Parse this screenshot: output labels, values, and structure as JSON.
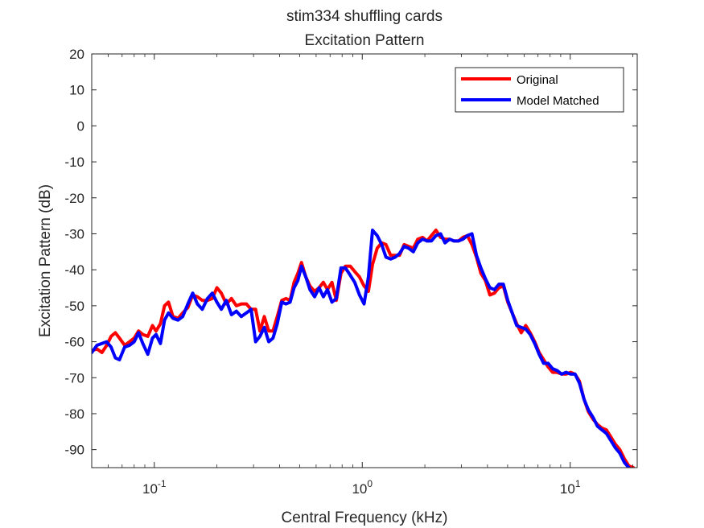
{
  "chart_data": {
    "type": "line",
    "title": "stim334 shuffling cards",
    "subtitle": "Excitation Pattern",
    "xlabel": "Central Frequency (kHz)",
    "ylabel": "Excitation Pattern (dB)",
    "xscale": "log",
    "xlim": [
      0.05,
      21
    ],
    "ylim": [
      -95,
      20
    ],
    "x_ticks": [
      {
        "value": 0.1,
        "base": "10",
        "exp": "-1"
      },
      {
        "value": 1,
        "base": "10",
        "exp": "0"
      },
      {
        "value": 10,
        "base": "10",
        "exp": "1"
      }
    ],
    "y_ticks": [
      20,
      10,
      0,
      -10,
      -20,
      -30,
      -40,
      -50,
      -60,
      -70,
      -80,
      -90
    ],
    "y_tick_labels": [
      "20",
      "10",
      "0",
      "-10",
      "-20",
      "-30",
      "-40",
      "-50",
      "-60",
      "-70",
      "-80",
      "-90"
    ],
    "grid": false,
    "legend_position": "top-right",
    "series": [
      {
        "name": "Original",
        "color": "#ff0000",
        "points": [
          [
            0.05,
            -62.5
          ],
          [
            0.053,
            -62
          ],
          [
            0.056,
            -63
          ],
          [
            0.059,
            -61
          ],
          [
            0.062,
            -58.5
          ],
          [
            0.065,
            -57.5
          ],
          [
            0.068,
            -59
          ],
          [
            0.072,
            -61
          ],
          [
            0.076,
            -60
          ],
          [
            0.08,
            -59
          ],
          [
            0.084,
            -57
          ],
          [
            0.088,
            -58
          ],
          [
            0.093,
            -58.5
          ],
          [
            0.098,
            -55.5
          ],
          [
            0.102,
            -57
          ],
          [
            0.107,
            -55
          ],
          [
            0.112,
            -50
          ],
          [
            0.117,
            -49
          ],
          [
            0.123,
            -53
          ],
          [
            0.13,
            -53.5
          ],
          [
            0.137,
            -52
          ],
          [
            0.145,
            -50.5
          ],
          [
            0.153,
            -47
          ],
          [
            0.161,
            -47.5
          ],
          [
            0.17,
            -48.5
          ],
          [
            0.18,
            -48.5
          ],
          [
            0.19,
            -48
          ],
          [
            0.2,
            -45
          ],
          [
            0.21,
            -46.5
          ],
          [
            0.222,
            -49.5
          ],
          [
            0.235,
            -48
          ],
          [
            0.248,
            -50
          ],
          [
            0.262,
            -49.5
          ],
          [
            0.277,
            -49.5
          ],
          [
            0.292,
            -51
          ],
          [
            0.307,
            -51
          ],
          [
            0.322,
            -57
          ],
          [
            0.338,
            -53
          ],
          [
            0.355,
            -57
          ],
          [
            0.372,
            -57
          ],
          [
            0.39,
            -53
          ],
          [
            0.41,
            -48.5
          ],
          [
            0.43,
            -48
          ],
          [
            0.45,
            -48.5
          ],
          [
            0.47,
            -43.5
          ],
          [
            0.49,
            -41
          ],
          [
            0.51,
            -38
          ],
          [
            0.535,
            -42
          ],
          [
            0.56,
            -44.5
          ],
          [
            0.59,
            -46
          ],
          [
            0.62,
            -45
          ],
          [
            0.65,
            -43.5
          ],
          [
            0.68,
            -45.5
          ],
          [
            0.715,
            -43.5
          ],
          [
            0.75,
            -48.5
          ],
          [
            0.79,
            -41
          ],
          [
            0.83,
            -39
          ],
          [
            0.875,
            -39
          ],
          [
            0.92,
            -40.5
          ],
          [
            0.97,
            -42
          ],
          [
            1.02,
            -44.5
          ],
          [
            1.07,
            -46
          ],
          [
            1.12,
            -38.5
          ],
          [
            1.18,
            -34
          ],
          [
            1.24,
            -32.5
          ],
          [
            1.3,
            -33
          ],
          [
            1.37,
            -36
          ],
          [
            1.44,
            -36
          ],
          [
            1.51,
            -36
          ],
          [
            1.59,
            -33
          ],
          [
            1.67,
            -33.5
          ],
          [
            1.76,
            -34
          ],
          [
            1.85,
            -31.5
          ],
          [
            1.95,
            -31
          ],
          [
            2.05,
            -32
          ],
          [
            2.15,
            -30.5
          ],
          [
            2.26,
            -29
          ],
          [
            2.38,
            -31
          ],
          [
            2.5,
            -31.5
          ],
          [
            2.63,
            -31.5
          ],
          [
            2.76,
            -32
          ],
          [
            2.9,
            -32
          ],
          [
            3.05,
            -31
          ],
          [
            3.2,
            -30.5
          ],
          [
            3.37,
            -33
          ],
          [
            3.54,
            -36.5
          ],
          [
            3.72,
            -41
          ],
          [
            3.91,
            -43
          ],
          [
            4.11,
            -47
          ],
          [
            4.32,
            -46.5
          ],
          [
            4.54,
            -45
          ],
          [
            4.77,
            -44.5
          ],
          [
            5.01,
            -49
          ],
          [
            5.26,
            -52
          ],
          [
            5.53,
            -55
          ],
          [
            5.81,
            -57.5
          ],
          [
            6.11,
            -55.5
          ],
          [
            6.42,
            -57.5
          ],
          [
            6.75,
            -60
          ],
          [
            7.09,
            -63
          ],
          [
            7.45,
            -65
          ],
          [
            7.83,
            -67
          ],
          [
            8.23,
            -68.5
          ],
          [
            8.65,
            -68.5
          ],
          [
            9.09,
            -69
          ],
          [
            9.55,
            -69
          ],
          [
            10.04,
            -68.5
          ],
          [
            10.55,
            -69
          ],
          [
            11.08,
            -71
          ],
          [
            11.65,
            -76
          ],
          [
            12.24,
            -79.5
          ],
          [
            12.86,
            -81.5
          ],
          [
            13.52,
            -83
          ],
          [
            14.2,
            -84
          ],
          [
            14.93,
            -84.5
          ],
          [
            15.69,
            -86.5
          ],
          [
            16.48,
            -88.5
          ],
          [
            17.32,
            -90
          ],
          [
            18.2,
            -92.5
          ],
          [
            19.13,
            -94.5
          ],
          [
            20.1,
            -95
          ]
        ]
      },
      {
        "name": "Model Matched",
        "color": "#0000ff",
        "points": [
          [
            0.05,
            -63
          ],
          [
            0.053,
            -61
          ],
          [
            0.056,
            -60.5
          ],
          [
            0.059,
            -60
          ],
          [
            0.062,
            -61.5
          ],
          [
            0.065,
            -64.5
          ],
          [
            0.068,
            -65
          ],
          [
            0.072,
            -61.5
          ],
          [
            0.076,
            -61
          ],
          [
            0.08,
            -60
          ],
          [
            0.084,
            -57.5
          ],
          [
            0.088,
            -60.5
          ],
          [
            0.093,
            -63.5
          ],
          [
            0.098,
            -59
          ],
          [
            0.102,
            -58
          ],
          [
            0.107,
            -60.5
          ],
          [
            0.112,
            -54
          ],
          [
            0.117,
            -52
          ],
          [
            0.123,
            -53.5
          ],
          [
            0.13,
            -54
          ],
          [
            0.137,
            -53
          ],
          [
            0.145,
            -49.5
          ],
          [
            0.153,
            -46.5
          ],
          [
            0.161,
            -49.5
          ],
          [
            0.17,
            -51
          ],
          [
            0.18,
            -48
          ],
          [
            0.19,
            -46.5
          ],
          [
            0.2,
            -49
          ],
          [
            0.21,
            -51
          ],
          [
            0.222,
            -48.5
          ],
          [
            0.235,
            -52.5
          ],
          [
            0.248,
            -51.5
          ],
          [
            0.262,
            -53
          ],
          [
            0.277,
            -52
          ],
          [
            0.292,
            -51
          ],
          [
            0.307,
            -60
          ],
          [
            0.322,
            -58.5
          ],
          [
            0.338,
            -56
          ],
          [
            0.355,
            -60
          ],
          [
            0.372,
            -59
          ],
          [
            0.39,
            -55
          ],
          [
            0.41,
            -49
          ],
          [
            0.43,
            -49.5
          ],
          [
            0.45,
            -49
          ],
          [
            0.47,
            -45
          ],
          [
            0.49,
            -43
          ],
          [
            0.51,
            -39
          ],
          [
            0.535,
            -42
          ],
          [
            0.56,
            -45.5
          ],
          [
            0.59,
            -47.5
          ],
          [
            0.62,
            -45
          ],
          [
            0.65,
            -47.5
          ],
          [
            0.68,
            -45.5
          ],
          [
            0.715,
            -49
          ],
          [
            0.75,
            -48
          ],
          [
            0.79,
            -39.5
          ],
          [
            0.83,
            -39.5
          ],
          [
            0.875,
            -41.5
          ],
          [
            0.92,
            -43.5
          ],
          [
            0.97,
            -47
          ],
          [
            1.02,
            -49.5
          ],
          [
            1.07,
            -42
          ],
          [
            1.12,
            -29
          ],
          [
            1.18,
            -30.5
          ],
          [
            1.24,
            -33
          ],
          [
            1.3,
            -36.5
          ],
          [
            1.37,
            -37
          ],
          [
            1.44,
            -36.5
          ],
          [
            1.51,
            -35.5
          ],
          [
            1.59,
            -33.5
          ],
          [
            1.67,
            -34
          ],
          [
            1.76,
            -35
          ],
          [
            1.85,
            -32.5
          ],
          [
            1.95,
            -31.5
          ],
          [
            2.05,
            -32
          ],
          [
            2.15,
            -32
          ],
          [
            2.26,
            -30.5
          ],
          [
            2.38,
            -30
          ],
          [
            2.5,
            -32.5
          ],
          [
            2.63,
            -31.5
          ],
          [
            2.76,
            -32
          ],
          [
            2.9,
            -32
          ],
          [
            3.05,
            -31.5
          ],
          [
            3.2,
            -30.5
          ],
          [
            3.37,
            -30
          ],
          [
            3.54,
            -36
          ],
          [
            3.72,
            -39.5
          ],
          [
            3.91,
            -42.5
          ],
          [
            4.11,
            -45
          ],
          [
            4.32,
            -45.5
          ],
          [
            4.54,
            -44
          ],
          [
            4.77,
            -44
          ],
          [
            5.01,
            -48.5
          ],
          [
            5.26,
            -52
          ],
          [
            5.53,
            -55.5
          ],
          [
            5.81,
            -56
          ],
          [
            6.11,
            -56.5
          ],
          [
            6.42,
            -58
          ],
          [
            6.75,
            -60.5
          ],
          [
            7.09,
            -63.5
          ],
          [
            7.45,
            -66
          ],
          [
            7.83,
            -66
          ],
          [
            8.23,
            -67.5
          ],
          [
            8.65,
            -68
          ],
          [
            9.09,
            -69
          ],
          [
            9.55,
            -68.5
          ],
          [
            10.04,
            -69
          ],
          [
            10.55,
            -69
          ],
          [
            11.08,
            -71.5
          ],
          [
            11.65,
            -76
          ],
          [
            12.24,
            -79
          ],
          [
            12.86,
            -81
          ],
          [
            13.52,
            -83.5
          ],
          [
            14.2,
            -84.5
          ],
          [
            14.93,
            -85.5
          ],
          [
            15.69,
            -87.5
          ],
          [
            16.48,
            -89.5
          ],
          [
            17.32,
            -91
          ],
          [
            18.2,
            -93.5
          ],
          [
            19.13,
            -95
          ],
          [
            20.1,
            -96
          ]
        ]
      }
    ]
  }
}
